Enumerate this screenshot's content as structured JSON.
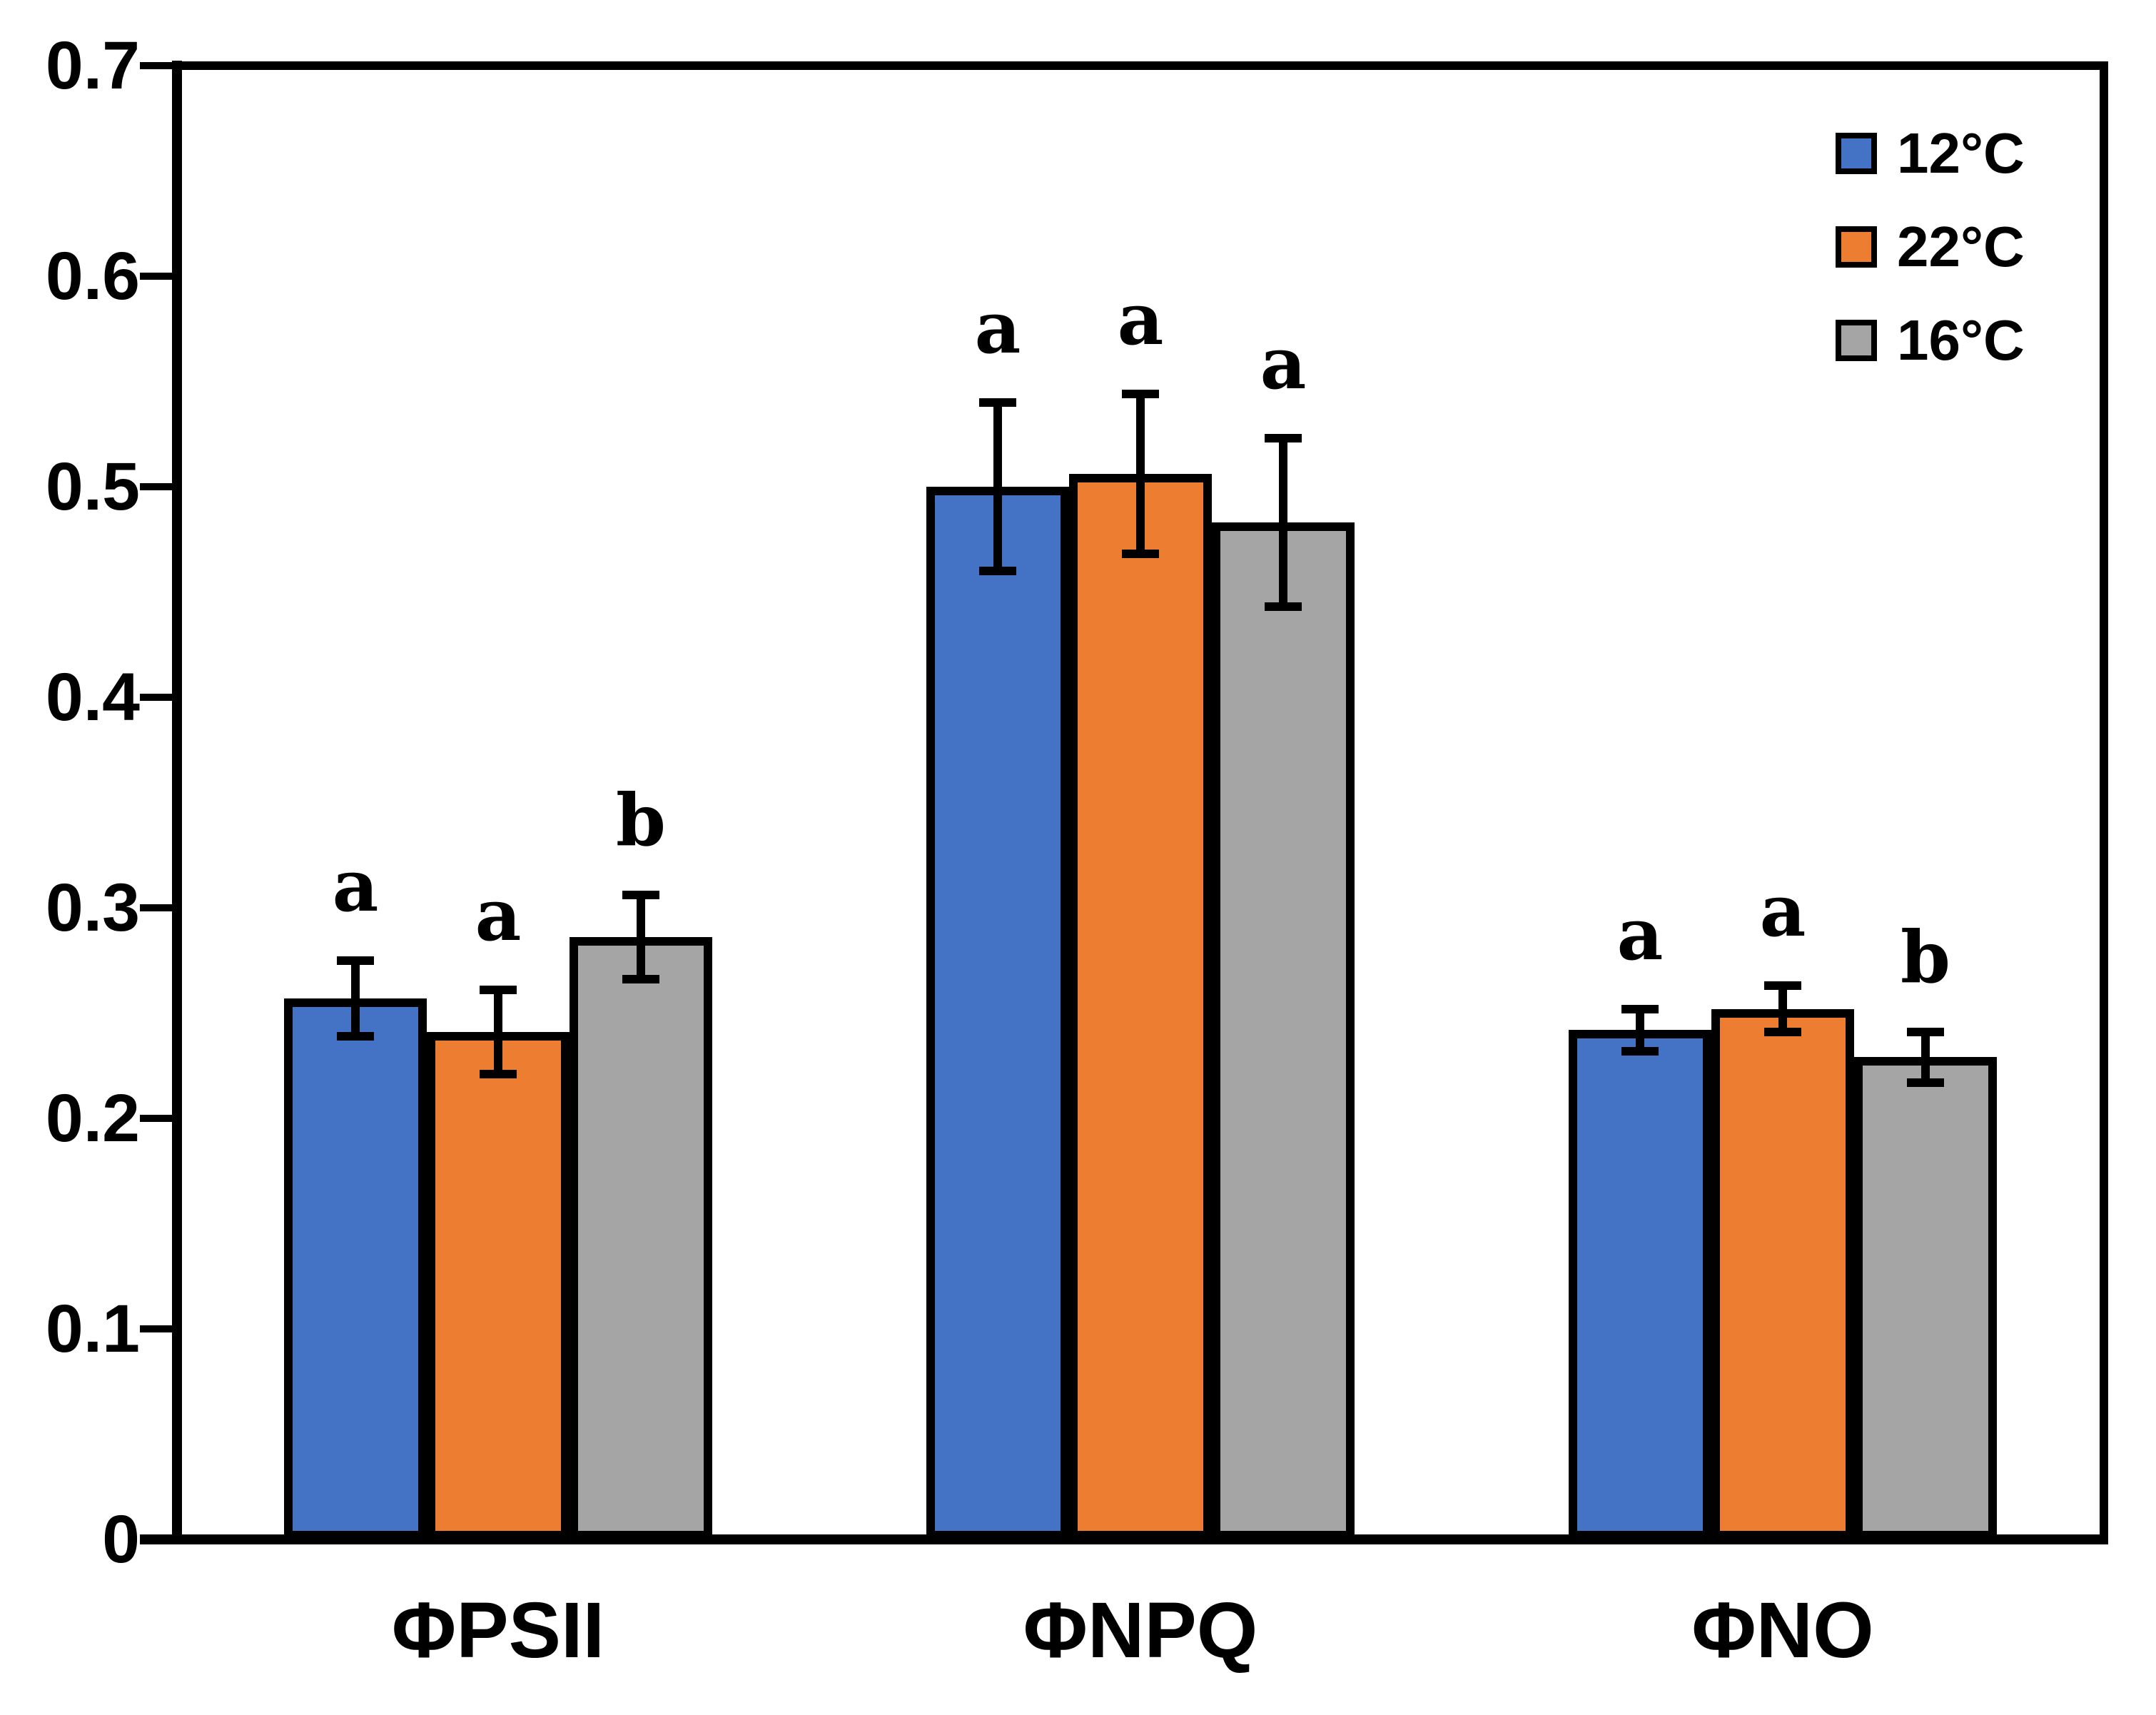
{
  "figure": {
    "background": "#FFFFFF",
    "axis_color": "#000000"
  },
  "chart_data": {
    "type": "bar",
    "title": "",
    "xlabel": "",
    "ylabel": "",
    "categories": [
      "ΦPSII",
      "ΦNPQ",
      "ΦNO"
    ],
    "series": [
      {
        "name": "12°C",
        "color": "#4472C4",
        "values": [
          0.257,
          0.5,
          0.242
        ],
        "errors": [
          0.018,
          0.04,
          0.01
        ],
        "sig_letters": [
          "a",
          "a",
          "a"
        ]
      },
      {
        "name": "22°C",
        "color": "#ED7D31",
        "values": [
          0.241,
          0.506,
          0.252
        ],
        "errors": [
          0.02,
          0.038,
          0.011
        ],
        "sig_letters": [
          "a",
          "a",
          "a"
        ]
      },
      {
        "name": "16°C",
        "color": "#A5A5A5",
        "values": [
          0.286,
          0.483,
          0.229
        ],
        "errors": [
          0.02,
          0.04,
          0.012
        ],
        "sig_letters": [
          "b",
          "a",
          "b"
        ]
      }
    ],
    "ylim": [
      0,
      0.7
    ],
    "yticks": [
      0,
      0.1,
      0.2,
      0.3,
      0.4,
      0.5,
      0.6,
      0.7
    ],
    "ytick_labels": [
      "0",
      "0.1",
      "0.2",
      "0.3",
      "0.4",
      "0.5",
      "0.6",
      "0.7"
    ],
    "grid": false,
    "error_bars": true,
    "legend": {
      "position": "top-right",
      "entries": [
        "12°C",
        "22°C",
        "16°C"
      ]
    }
  }
}
